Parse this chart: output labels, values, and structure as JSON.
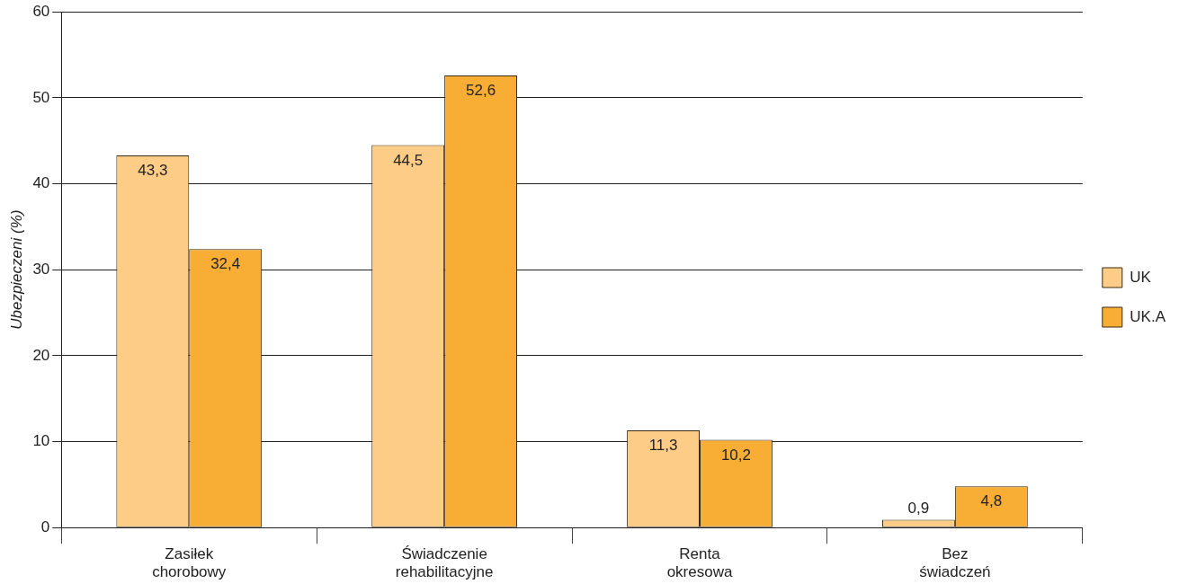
{
  "chart_data": {
    "type": "bar",
    "ylabel": "Ubezpieczeni (%)",
    "categories": [
      "Zasiłek chorobowy",
      "Świadczenie rehabilitacyjne",
      "Renta okresowa",
      "Bez świadczeń"
    ],
    "series": [
      {
        "name": "UK",
        "color": "#fdcd88",
        "values": [
          43.3,
          44.5,
          11.3,
          0.9
        ],
        "value_labels": [
          "43,3",
          "44,5",
          "11,3",
          "0,9"
        ]
      },
      {
        "name": "UK.A",
        "color": "#f8ae35",
        "values": [
          32.4,
          52.6,
          10.2,
          4.8
        ],
        "value_labels": [
          "32,4",
          "52,6",
          "10,2",
          "4,8"
        ]
      }
    ],
    "ylim": [
      0,
      60
    ],
    "yticks": [
      0,
      10,
      20,
      30,
      40,
      50,
      60
    ],
    "grid": "y",
    "legend": "right"
  }
}
